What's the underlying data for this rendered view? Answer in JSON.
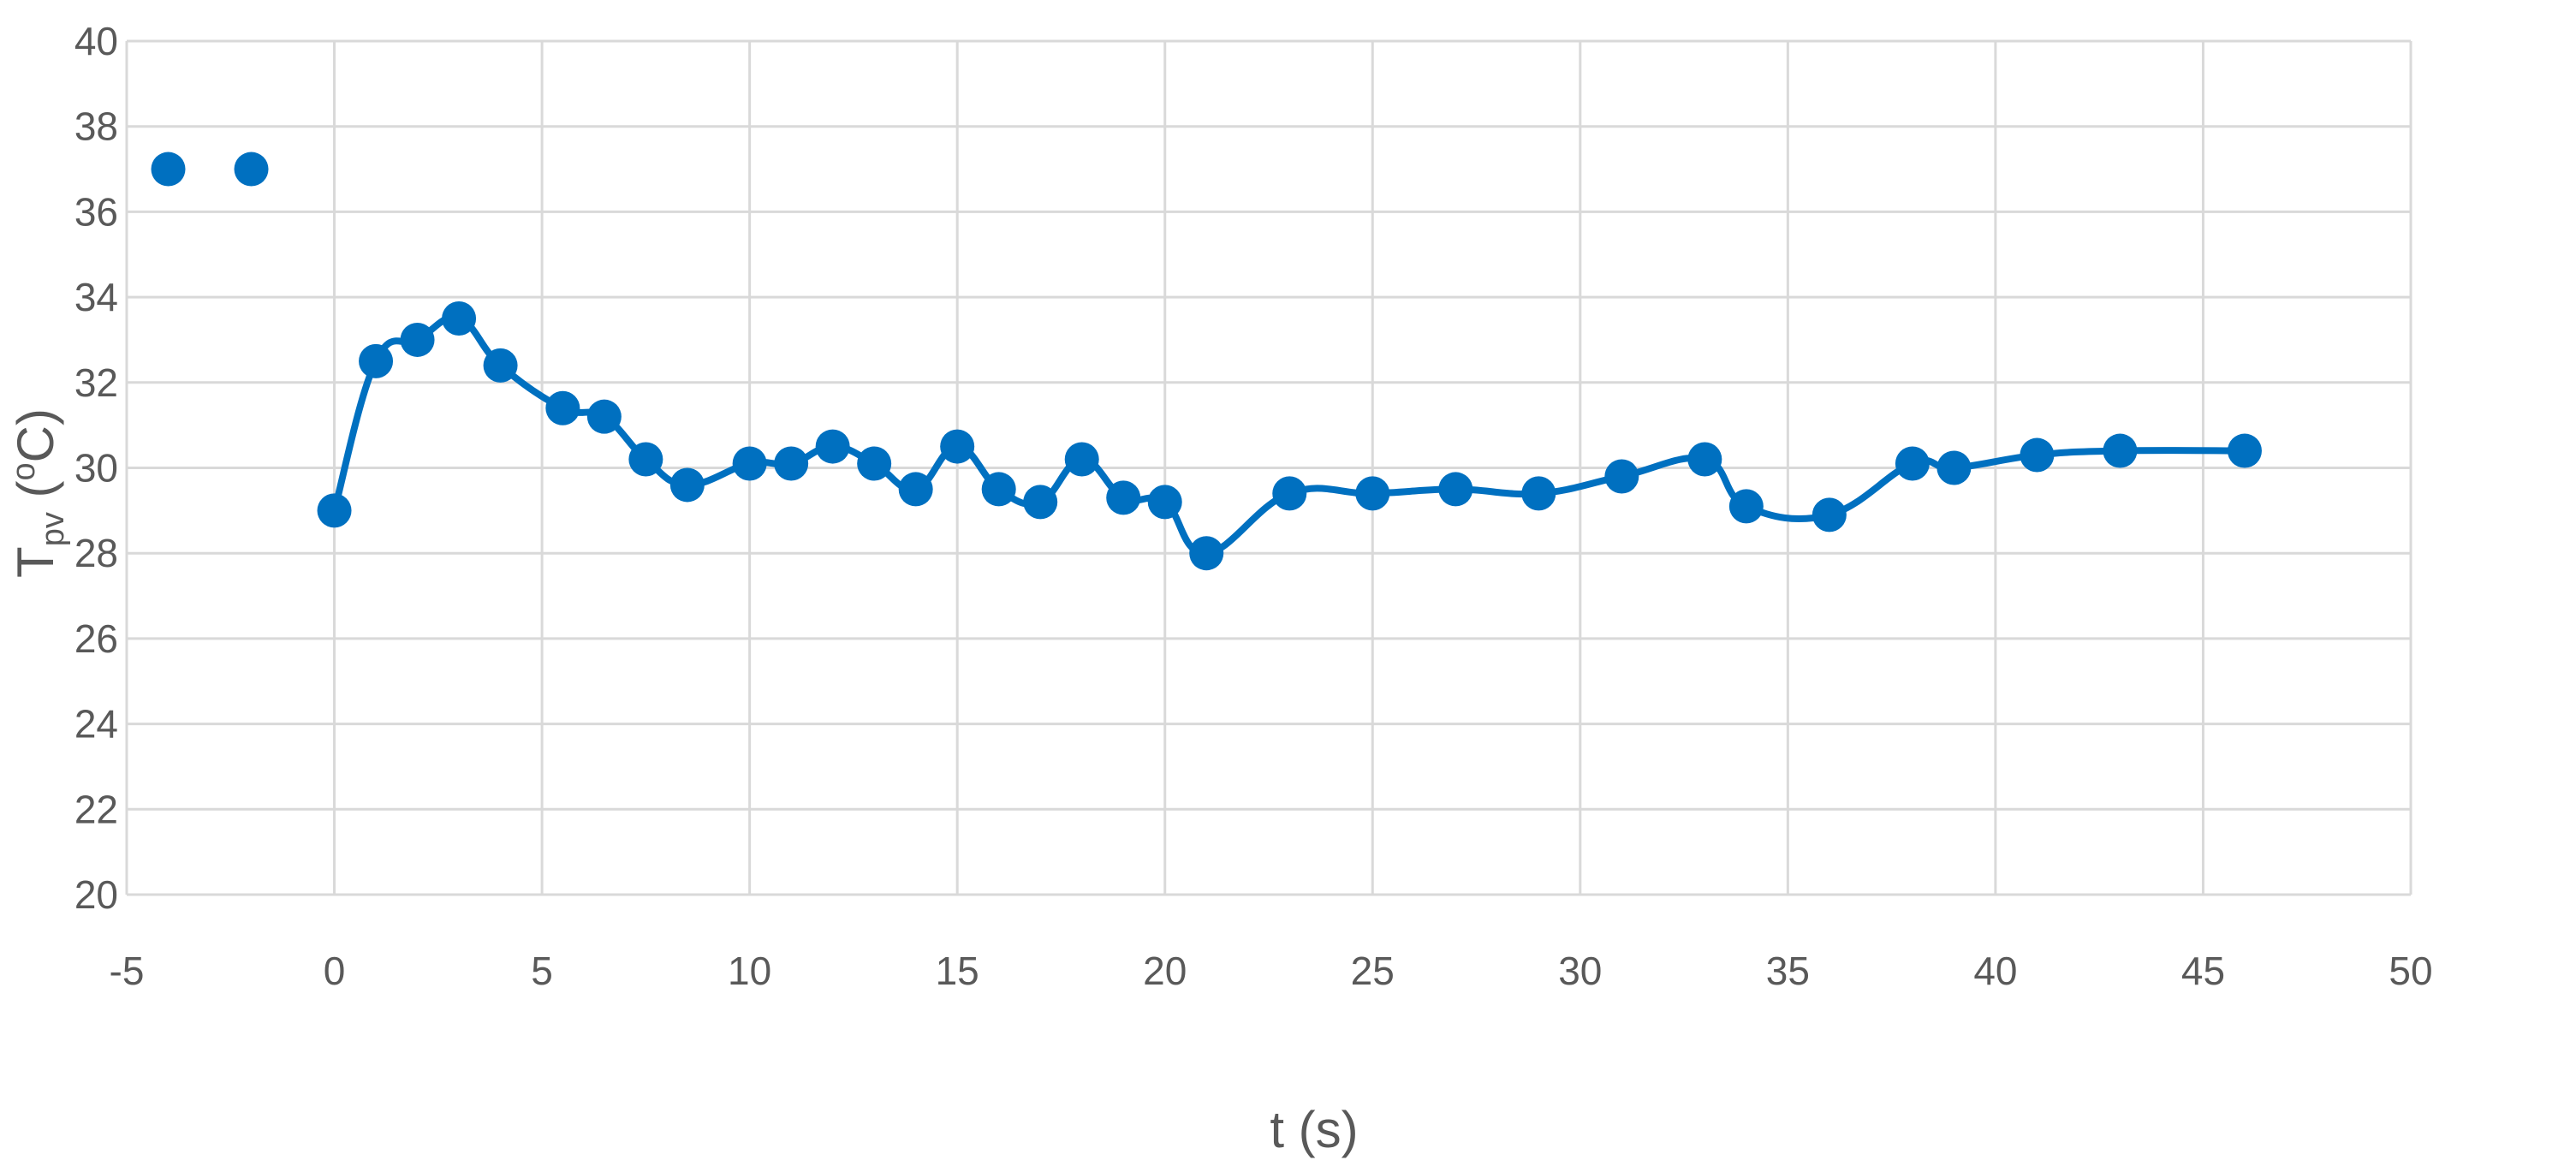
{
  "chart_data": {
    "type": "scatter",
    "title": "",
    "xlabel": "t (s)",
    "ylabel": {
      "main": "T",
      "sub": "pv",
      "open": " (",
      "sup": "o",
      "unit": "C)"
    },
    "xlim": [
      -5,
      50
    ],
    "ylim": [
      20,
      40
    ],
    "xticks": [
      -5,
      0,
      5,
      10,
      15,
      20,
      25,
      30,
      35,
      40,
      45,
      50
    ],
    "yticks": [
      20,
      22,
      24,
      26,
      28,
      30,
      32,
      34,
      36,
      38,
      40
    ],
    "grid": true,
    "legend": "none",
    "colors": {
      "series": "#0070c0",
      "grid": "#d9d9d9",
      "text": "#595959"
    },
    "series": [
      {
        "name": "",
        "marker": "circle",
        "smooth_line": true,
        "x": [
          0,
          1,
          2,
          3,
          4,
          5.5,
          6.5,
          7.5,
          8.5,
          10,
          11,
          12,
          13,
          14,
          15,
          16,
          17,
          18,
          19,
          20,
          21,
          23,
          25,
          27,
          29,
          31,
          33,
          34,
          36,
          38,
          39,
          41,
          43,
          46
        ],
        "y": [
          29,
          32.5,
          33,
          33.5,
          32.4,
          31.4,
          31.2,
          30.2,
          29.6,
          30.1,
          30.1,
          30.5,
          30.1,
          29.5,
          30.5,
          29.5,
          29.2,
          30.2,
          29.3,
          29.2,
          28,
          29.4,
          29.4,
          29.5,
          29.4,
          29.8,
          30.2,
          29.1,
          28.9,
          30.1,
          30,
          30.3,
          30.4,
          30.4
        ]
      },
      {
        "name": "",
        "marker": "circle",
        "smooth_line": false,
        "x": [
          -4,
          -2
        ],
        "y": [
          37,
          37
        ]
      }
    ]
  }
}
